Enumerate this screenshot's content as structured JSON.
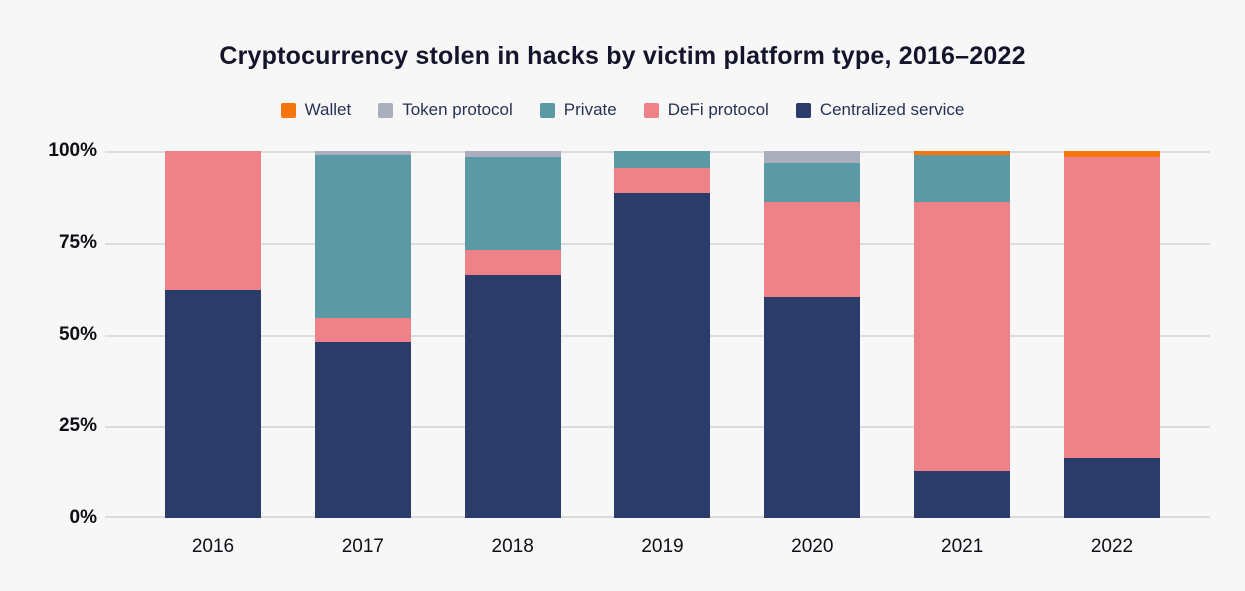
{
  "chart_data": {
    "type": "bar",
    "stacked": true,
    "stack_unit": "percent",
    "title": "Cryptocurrency stolen in hacks by victim platform type, 2016–2022",
    "categories": [
      "2016",
      "2017",
      "2018",
      "2019",
      "2020",
      "2021",
      "2022"
    ],
    "series": [
      {
        "name": "Wallet",
        "color": "#f5750c",
        "values": [
          0,
          0,
          0,
          0,
          0,
          1,
          1.5
        ]
      },
      {
        "name": "Token protocol",
        "color": "#a9afbc",
        "values": [
          0,
          1,
          1.5,
          0,
          3.2,
          0,
          0
        ]
      },
      {
        "name": "Private",
        "color": "#5b9aa5",
        "values": [
          0,
          44.5,
          25.5,
          4.5,
          10.6,
          13,
          0
        ]
      },
      {
        "name": "DeFi protocol",
        "color": "#ef8289",
        "values": [
          38,
          6.5,
          6.7,
          7,
          25.9,
          73.2,
          82.2
        ]
      },
      {
        "name": "Centralized service",
        "color": "#2b3c6a",
        "values": [
          62,
          48,
          66.3,
          88.5,
          60.3,
          12.8,
          16.3
        ]
      }
    ],
    "stack_order_bottom_to_top": [
      "Centralized service",
      "DeFi protocol",
      "Private",
      "Token protocol",
      "Wallet"
    ],
    "legend_order": [
      "Wallet",
      "Token protocol",
      "Private",
      "DeFi protocol",
      "Centralized service"
    ],
    "legend_position": "top",
    "grid": true,
    "y_axis": {
      "min": 0,
      "max": 100,
      "ticks": [
        "0%",
        "25%",
        "50%",
        "75%",
        "100%"
      ]
    }
  }
}
